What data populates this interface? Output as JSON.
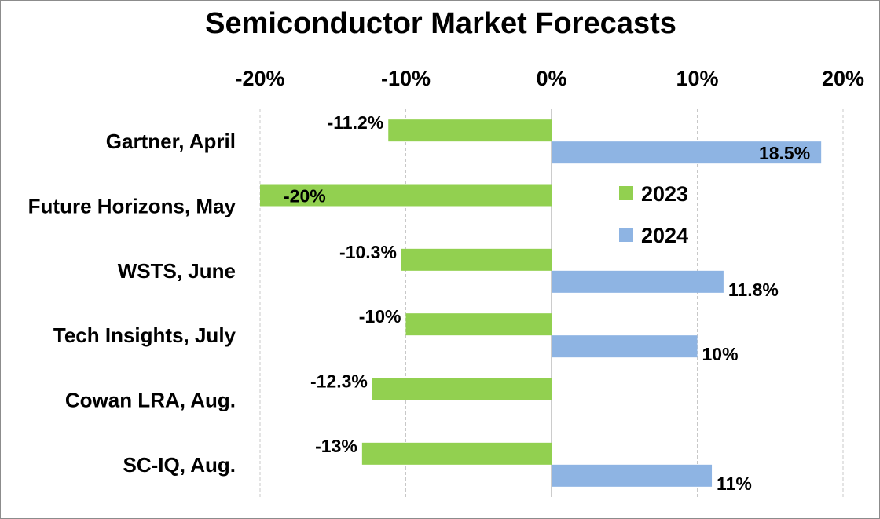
{
  "chart_data": {
    "type": "bar",
    "orientation": "horizontal",
    "title": "Semiconductor Market Forecasts",
    "xlabel": "",
    "ylabel": "",
    "xlim": [
      -20,
      20
    ],
    "x_ticks": [
      -20,
      -10,
      0,
      10,
      20
    ],
    "x_tick_labels": [
      "-20%",
      "-10%",
      "0%",
      "10%",
      "20%"
    ],
    "x_axis_position": "top",
    "grid": true,
    "legend_position": "right-center",
    "categories": [
      "Gartner, April",
      "Future Horizons, May",
      "WSTS, June",
      "Tech Insights, July",
      "Cowan LRA, Aug.",
      "SC-IQ, Aug."
    ],
    "series": [
      {
        "name": "2023",
        "color": "#92d050",
        "values": [
          -11.2,
          -20,
          -10.3,
          -10,
          -12.3,
          -13
        ],
        "labels": [
          "-11.2%",
          "-20%",
          "-10.3%",
          "-10%",
          "-12.3%",
          "-13%"
        ]
      },
      {
        "name": "2024",
        "color": "#8eb4e3",
        "values": [
          18.5,
          null,
          11.8,
          10,
          null,
          11
        ],
        "labels": [
          "18.5%",
          "",
          "11.8%",
          "10%",
          "",
          "11%"
        ]
      }
    ]
  }
}
